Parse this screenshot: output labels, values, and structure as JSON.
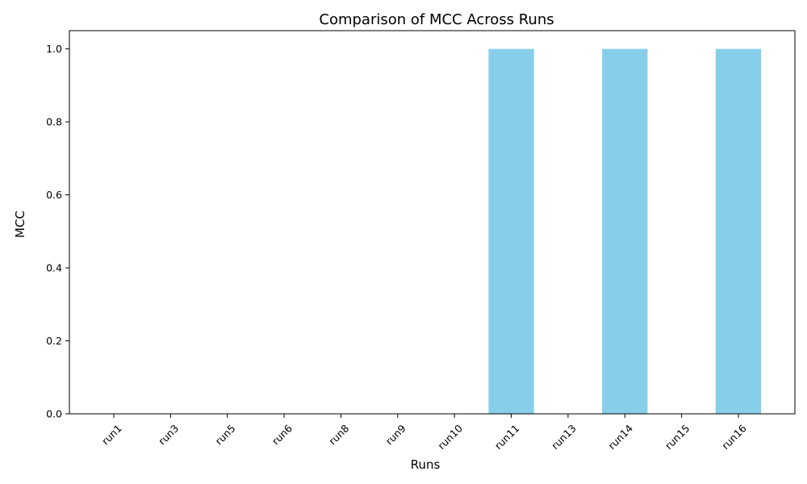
{
  "chart_data": {
    "type": "bar",
    "title": "Comparison of MCC Across Runs",
    "xlabel": "Runs",
    "ylabel": "MCC",
    "categories": [
      "run1",
      "run3",
      "run5",
      "run6",
      "run8",
      "run9",
      "run10",
      "run11",
      "run13",
      "run14",
      "run15",
      "run16"
    ],
    "values": [
      0,
      0,
      0,
      0,
      0,
      0,
      0,
      1.0,
      0,
      1.0,
      0,
      1.0
    ],
    "ylim": [
      0,
      1.05
    ],
    "yticks": [
      "0.0",
      "0.2",
      "0.4",
      "0.6",
      "0.8",
      "1.0"
    ],
    "ytick_values": [
      0,
      0.2,
      0.4,
      0.6,
      0.8,
      1.0
    ],
    "grid": false,
    "bar_color": "#87ceeb",
    "xtick_rotation_deg": 45
  }
}
